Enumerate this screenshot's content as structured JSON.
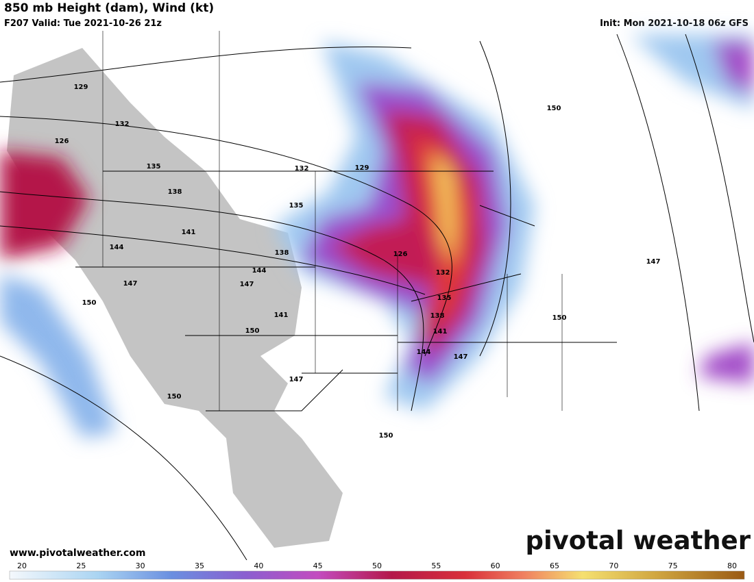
{
  "header": {
    "title": "850 mb Height (dam), Wind (kt)",
    "valid": "F207 Valid: Tue 2021-10-26 21z",
    "init": "Init: Mon 2021-10-18 06z GFS"
  },
  "contour_labels": [
    129,
    132,
    126,
    135,
    138,
    141,
    144,
    147,
    150,
    132,
    129,
    135,
    138,
    144,
    147,
    141,
    150,
    147,
    150,
    126,
    132,
    135,
    138,
    141,
    144,
    147,
    150,
    150,
    147,
    150
  ],
  "footer": {
    "url": "www.pivotalweather.com",
    "logo": "pivotal weather"
  },
  "colorbar": {
    "ticks": [
      20,
      25,
      30,
      35,
      40,
      45,
      50,
      55,
      60,
      65,
      70,
      75,
      80
    ]
  }
}
